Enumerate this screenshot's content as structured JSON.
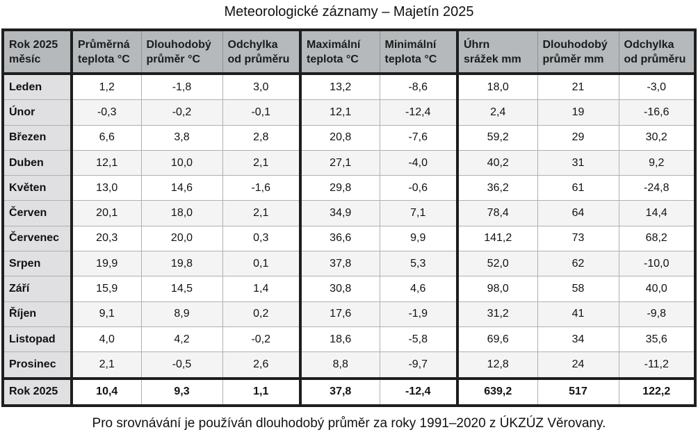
{
  "title": "Meteorologické záznamy – Majetín 2025",
  "headers": [
    [
      "Rok 2025",
      "měsíc"
    ],
    [
      "Průměrná",
      "teplota °C"
    ],
    [
      "Dlouhodobý",
      "průměr °C"
    ],
    [
      "Odchylka",
      "od průměru"
    ],
    [
      "Maximální",
      "teplota °C"
    ],
    [
      "Minimální",
      "teplota °C"
    ],
    [
      "Úhrn",
      "srážek mm"
    ],
    [
      "Dlouhodobý",
      "průměr mm"
    ],
    [
      "Odchylka",
      "od průměru"
    ]
  ],
  "rows": [
    [
      "Leden",
      "1,2",
      "-1,8",
      "3,0",
      "13,2",
      "-8,6",
      "18,0",
      "21",
      "-3,0"
    ],
    [
      "Únor",
      "-0,3",
      "-0,2",
      "-0,1",
      "12,1",
      "-12,4",
      "2,4",
      "19",
      "-16,6"
    ],
    [
      "Březen",
      "6,6",
      "3,8",
      "2,8",
      "20,8",
      "-7,6",
      "59,2",
      "29",
      "30,2"
    ],
    [
      "Duben",
      "12,1",
      "10,0",
      "2,1",
      "27,1",
      "-4,0",
      "40,2",
      "31",
      "9,2"
    ],
    [
      "Květen",
      "13,0",
      "14,6",
      "-1,6",
      "29,8",
      "-0,6",
      "36,2",
      "61",
      "-24,8"
    ],
    [
      "Červen",
      "20,1",
      "18,0",
      "2,1",
      "34,9",
      "7,1",
      "78,4",
      "64",
      "14,4"
    ],
    [
      "Červenec",
      "20,3",
      "20,0",
      "0,3",
      "36,6",
      "9,9",
      "141,2",
      "73",
      "68,2"
    ],
    [
      "Srpen",
      "19,9",
      "19,8",
      "0,1",
      "37,8",
      "5,3",
      "52,0",
      "62",
      "-10,0"
    ],
    [
      "Září",
      "15,9",
      "14,5",
      "1,4",
      "30,8",
      "4,6",
      "98,0",
      "58",
      "40,0"
    ],
    [
      "Říjen",
      "9,1",
      "8,9",
      "0,2",
      "17,6",
      "-1,9",
      "31,2",
      "41",
      "-9,8"
    ],
    [
      "Listopad",
      "4,0",
      "4,2",
      "-0,2",
      "18,6",
      "-5,8",
      "69,6",
      "34",
      "35,6"
    ],
    [
      "Prosinec",
      "2,1",
      "-0,5",
      "2,6",
      "8,8",
      "-9,7",
      "12,8",
      "24",
      "-11,2"
    ]
  ],
  "total": [
    "Rok 2025",
    "10,4",
    "9,3",
    "1,1",
    "37,8",
    "-12,4",
    "639,2",
    "517",
    "122,2"
  ],
  "footnote": "Pro srovnávání je používán dlouhodobý průměr za roky 1991–2020 z ÚKZÚZ Věrovany."
}
